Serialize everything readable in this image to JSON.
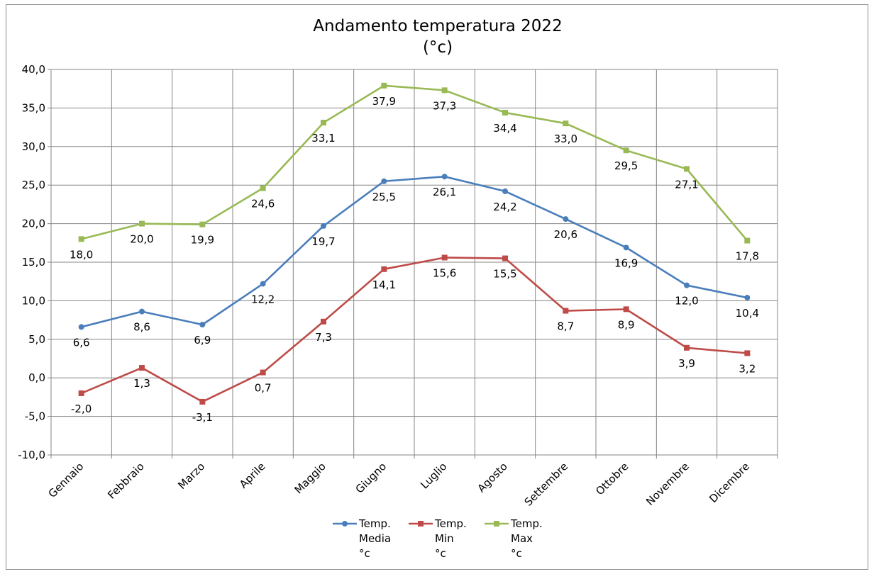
{
  "chart_data": {
    "type": "line",
    "title": "Andamento temperatura 2022",
    "subtitle": "(°c)",
    "xlabel": "",
    "ylabel": "",
    "ylim": [
      -10,
      40
    ],
    "yticks": [
      "40,0",
      "35,0",
      "30,0",
      "25,0",
      "20,0",
      "15,0",
      "10,0",
      "5,0",
      "0,0",
      "-5,0",
      "-10,0"
    ],
    "grid": true,
    "legend_position": "bottom",
    "categories": [
      "Gennaio",
      "Febbraio",
      "Marzo",
      "Aprile",
      "Maggio",
      "Giugno",
      "Luglio",
      "Agosto",
      "Settembre",
      "Ottobre",
      "Novembre",
      "Dicembre"
    ],
    "series": [
      {
        "name": "Temp. Media °c",
        "legend_lines": [
          "Temp.",
          "Media",
          "°c"
        ],
        "color": "#4a7ebb",
        "marker": "circle",
        "values": [
          6.6,
          8.6,
          6.9,
          12.2,
          19.7,
          25.5,
          26.1,
          24.2,
          20.6,
          16.9,
          12.0,
          10.4
        ],
        "labels": [
          "6,6",
          "8,6",
          "6,9",
          "12,2",
          "19,7",
          "25,5",
          "26,1",
          "24,2",
          "20,6",
          "16,9",
          "12,0",
          "10,4"
        ]
      },
      {
        "name": "Temp. Min °c",
        "legend_lines": [
          "Temp.",
          "Min",
          "°c"
        ],
        "color": "#be4b48",
        "marker": "square",
        "values": [
          -2.0,
          1.3,
          -3.1,
          0.7,
          7.3,
          14.1,
          15.6,
          15.5,
          8.7,
          8.9,
          3.9,
          3.2
        ],
        "labels": [
          "-2,0",
          "1,3",
          "-3,1",
          "0,7",
          "7,3",
          "14,1",
          "15,6",
          "15,5",
          "8,7",
          "8,9",
          "3,9",
          "3,2"
        ]
      },
      {
        "name": "Temp. Max °c",
        "legend_lines": [
          "Temp.",
          "Max",
          "°c"
        ],
        "color": "#98b954",
        "marker": "square",
        "values": [
          18.0,
          20.0,
          19.9,
          24.6,
          33.1,
          37.9,
          37.3,
          34.4,
          33.0,
          29.5,
          27.1,
          17.8
        ],
        "labels": [
          "18,0",
          "20,0",
          "19,9",
          "24,6",
          "33,1",
          "37,9",
          "37,3",
          "34,4",
          "33,0",
          "29,5",
          "27,1",
          "17,8"
        ]
      }
    ]
  }
}
